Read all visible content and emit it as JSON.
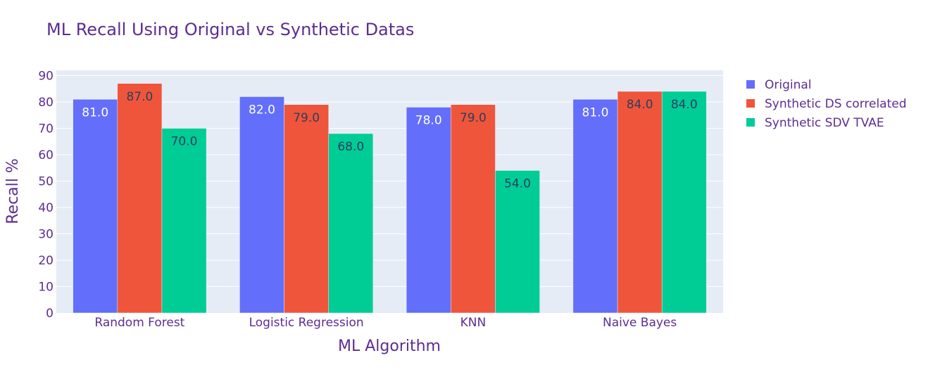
{
  "chart_data": {
    "type": "bar",
    "title": "ML Recall Using Original vs Synthetic Datas",
    "xlabel": "ML Algorithm",
    "ylabel": "Recall %",
    "categories": [
      "Random Forest",
      "Logistic Regression",
      "KNN",
      "Naive Bayes"
    ],
    "series": [
      {
        "name": "Original",
        "values": [
          81.0,
          82.0,
          78.0,
          81.0
        ],
        "labels": [
          "81.0",
          "82.0",
          "78.0",
          "81.0"
        ],
        "color": "#636efa",
        "label_color": "#ffffff"
      },
      {
        "name": "Synthetic DS correlated",
        "values": [
          87.0,
          79.0,
          79.0,
          84.0
        ],
        "labels": [
          "87.0",
          "79.0",
          "79.0",
          "84.0"
        ],
        "color": "#ef553b",
        "label_color": "#2a3f5f"
      },
      {
        "name": "Synthetic SDV TVAE",
        "values": [
          70.0,
          68.0,
          54.0,
          84.0
        ],
        "labels": [
          "70.0",
          "68.0",
          "54.0",
          "84.0"
        ],
        "color": "#00cc96",
        "label_color": "#2a3f5f"
      }
    ],
    "ylim": [
      0,
      92
    ],
    "yticks": [
      0,
      10,
      20,
      30,
      40,
      50,
      60,
      70,
      80,
      90
    ],
    "grid": true,
    "legend_position": "top-right",
    "plot_background": "#e5ecf6",
    "text_color": "#5c2d91"
  }
}
